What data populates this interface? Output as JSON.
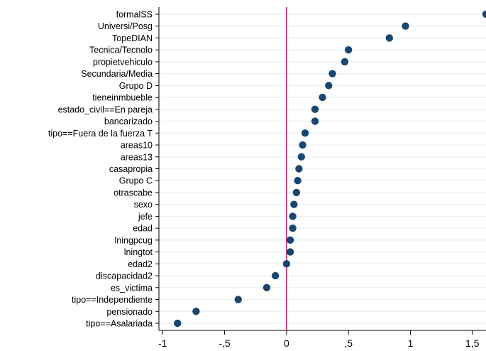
{
  "chart_data": {
    "type": "scatter",
    "title": "",
    "xlabel": "",
    "ylabel": "",
    "xlim": [
      -1.03,
      1.61
    ],
    "x_ticks": [
      -1,
      -0.5,
      0,
      0.5,
      1,
      1.5
    ],
    "x_tick_labels": [
      "-1",
      "-,5",
      "0",
      ",5",
      "1",
      "1,5"
    ],
    "reference_line": {
      "x": 0,
      "color": "#b0135b"
    },
    "grid": "horizontal",
    "categories": [
      "formalSS",
      "Universi/Posg",
      "TopeDIAN",
      "Tecnica/Tecnolo",
      "propietvehiculo",
      "Secundaria/Media",
      "Grupo D",
      "tieneinmbueble",
      "estado_civil==En pareja",
      "bancarizado",
      "tipo==Fuera de la fuerza T",
      "areas10",
      "areas13",
      "casapropia",
      "Grupo C",
      "otrascabe",
      "sexo",
      "jefe",
      "edad",
      "lningpcug",
      "lningtot",
      "edad2",
      "discapacidad2",
      "es_victima",
      "tipo==Independiente",
      "pensionado",
      "tipo==Asalariada"
    ],
    "values": [
      1.61,
      0.96,
      0.83,
      0.5,
      0.47,
      0.37,
      0.34,
      0.29,
      0.23,
      0.23,
      0.15,
      0.13,
      0.12,
      0.1,
      0.09,
      0.08,
      0.06,
      0.05,
      0.05,
      0.03,
      0.03,
      0.0,
      -0.09,
      -0.16,
      -0.39,
      -0.73,
      -0.88
    ],
    "marker_color": "#1a476f",
    "grid_color": "#eaf2f3"
  }
}
